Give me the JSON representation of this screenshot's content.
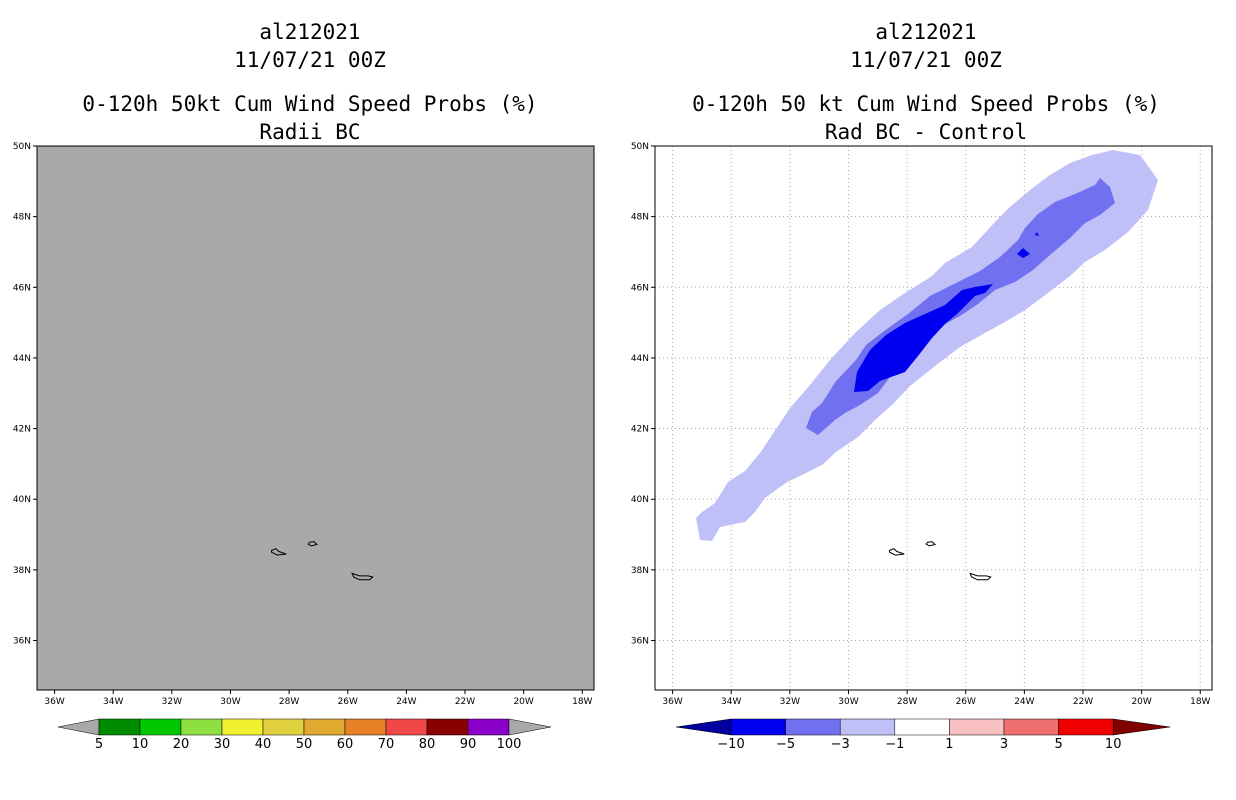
{
  "left_panel": {
    "storm_id": "al212021",
    "datetime": "11/07/21 00Z",
    "product": "0-120h 50kt Cum Wind Speed Probs (%)",
    "subtitle": "Radii BC",
    "background_color": "#a9a9a9",
    "colorbar": {
      "labels": [
        "5",
        "10",
        "20",
        "30",
        "40",
        "50",
        "60",
        "70",
        "80",
        "90",
        "100"
      ],
      "colors": [
        "#008a00",
        "#00c800",
        "#8ee040",
        "#f0f030",
        "#e0d040",
        "#e0aa30",
        "#e88028",
        "#f04848",
        "#8a0000",
        "#8a00c8"
      ]
    }
  },
  "right_panel": {
    "storm_id": "al212021",
    "datetime": "11/07/21 00Z",
    "product": "0-120h 50 kt Cum Wind Speed Probs (%)",
    "subtitle": "Rad BC - Control",
    "colorbar": {
      "labels": [
        "-10",
        "-5",
        "-3",
        "-1",
        "1",
        "3",
        "5",
        "10"
      ],
      "colors": [
        "#0000a0",
        "#0000f0",
        "#7070f0",
        "#c0c0f8",
        "#ffffff",
        "#f8c0c0",
        "#f07070",
        "#f00000",
        "#800000"
      ]
    },
    "contour_levels": [
      {
        "name": "-1 to -3",
        "color": "#c0c0f8"
      },
      {
        "name": "-3 to -5",
        "color": "#7070f0"
      },
      {
        "name": "-5 to -10",
        "color": "#0000f0"
      }
    ]
  },
  "axes": {
    "lat_labels": [
      "50N",
      "48N",
      "46N",
      "44N",
      "42N",
      "40N",
      "38N",
      "36N"
    ],
    "lon_labels": [
      "36W",
      "34W",
      "32W",
      "30W",
      "28W",
      "26W",
      "24W",
      "22W",
      "20W",
      "18W"
    ],
    "lat_range": [
      34.6,
      50
    ],
    "lon_range": [
      -36.6,
      -17.6
    ]
  }
}
